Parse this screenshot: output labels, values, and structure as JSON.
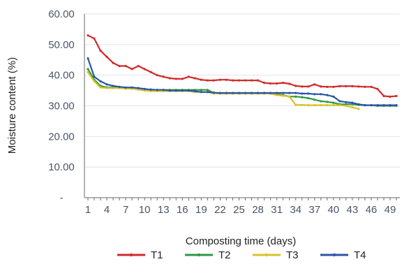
{
  "chart_data": {
    "type": "line",
    "xlabel": "Composting time (days)",
    "ylabel": "Moisture content  (%)",
    "ylim": [
      0,
      60
    ],
    "y_ticks": [
      {
        "value": 0,
        "label": "-"
      },
      {
        "value": 10,
        "label": "10.00"
      },
      {
        "value": 20,
        "label": "20.00"
      },
      {
        "value": 30,
        "label": "30.00"
      },
      {
        "value": 40,
        "label": "40.00"
      },
      {
        "value": 50,
        "label": "50.00"
      },
      {
        "value": 60,
        "label": "60.00"
      }
    ],
    "x_ticks": [
      1,
      4,
      7,
      10,
      13,
      16,
      19,
      22,
      25,
      28,
      31,
      34,
      37,
      40,
      43,
      46,
      49
    ],
    "xlim": [
      1,
      50
    ],
    "grid": true,
    "legend_position": "bottom",
    "series": [
      {
        "name": "T1",
        "color": "#d12b2b",
        "x": [
          1,
          2,
          3,
          4,
          5,
          6,
          7,
          8,
          9,
          10,
          11,
          12,
          13,
          14,
          15,
          16,
          17,
          18,
          19,
          20,
          21,
          22,
          23,
          24,
          25,
          26,
          27,
          28,
          29,
          30,
          31,
          32,
          33,
          34,
          35,
          36,
          37,
          38,
          39,
          40,
          41,
          42,
          43,
          44,
          45,
          46,
          47,
          48,
          49,
          50
        ],
        "values": [
          53,
          52,
          48,
          46,
          44,
          43,
          43,
          42,
          43,
          42,
          41,
          40,
          39.5,
          39,
          38.8,
          38.8,
          39.5,
          39,
          38.5,
          38.3,
          38.3,
          38.5,
          38.5,
          38.3,
          38.3,
          38.3,
          38.3,
          38.3,
          37.5,
          37.3,
          37.3,
          37.5,
          37.2,
          36.5,
          36.3,
          36.3,
          37,
          36.3,
          36.2,
          36.2,
          36.4,
          36.4,
          36.4,
          36.3,
          36.2,
          36.2,
          35.5,
          33.2,
          33,
          33.2
        ]
      },
      {
        "name": "T2",
        "color": "#2f9a3f",
        "x": [
          1,
          2,
          3,
          4,
          5,
          6,
          7,
          8,
          9,
          10,
          11,
          12,
          13,
          14,
          15,
          16,
          17,
          18,
          19,
          20,
          21,
          22,
          23,
          24,
          25,
          26,
          27,
          28,
          29,
          30,
          31,
          32,
          33,
          34,
          35,
          36,
          37,
          38,
          39,
          40,
          41,
          42,
          43,
          44,
          45,
          46,
          47,
          48,
          49,
          50
        ],
        "values": [
          42,
          38.5,
          36.5,
          36,
          36,
          36,
          35.8,
          35.8,
          35.5,
          35.3,
          35.3,
          35.2,
          35.2,
          35.2,
          35.2,
          35.2,
          35.2,
          35.2,
          35.2,
          35.2,
          34.2,
          34.2,
          34.2,
          34.2,
          34.2,
          34.2,
          34.2,
          34.2,
          34.2,
          34,
          33.8,
          33.5,
          33,
          33,
          32.8,
          32.5,
          32,
          31.5,
          31.3,
          31,
          30.5,
          30.5,
          30.5,
          30.3,
          30.2,
          30.2,
          30,
          30,
          30,
          30
        ]
      },
      {
        "name": "T3",
        "color": "#d8c32a",
        "x": [
          1,
          2,
          3,
          4,
          5,
          6,
          7,
          8,
          9,
          10,
          11,
          12,
          13,
          14,
          15,
          16,
          17,
          18,
          19,
          20,
          21,
          22,
          23,
          24,
          25,
          26,
          27,
          28,
          29,
          30,
          31,
          32,
          33,
          34,
          35,
          36,
          37,
          38,
          39,
          40,
          41,
          42,
          43,
          44
        ],
        "values": [
          41,
          38,
          36,
          35.8,
          35.8,
          35.8,
          35.6,
          35.6,
          35.3,
          35,
          34.8,
          34.8,
          34.8,
          34.8,
          34.8,
          34.8,
          34.8,
          34.5,
          34.5,
          34.5,
          34,
          34,
          34,
          34,
          34,
          34,
          34,
          34,
          34,
          34,
          33.5,
          33.3,
          33,
          30.3,
          30.3,
          30.2,
          30.2,
          30.2,
          30.2,
          30.2,
          30.2,
          30,
          29.5,
          29
        ]
      },
      {
        "name": "T4",
        "color": "#2c55a8",
        "x": [
          1,
          2,
          3,
          4,
          5,
          6,
          7,
          8,
          9,
          10,
          11,
          12,
          13,
          14,
          15,
          16,
          17,
          18,
          19,
          20,
          21,
          22,
          23,
          24,
          25,
          26,
          27,
          28,
          29,
          30,
          31,
          32,
          33,
          34,
          35,
          36,
          37,
          38,
          39,
          40,
          41,
          42,
          43,
          44,
          45,
          46,
          47,
          48,
          49,
          50
        ],
        "values": [
          45.5,
          39.5,
          38,
          37,
          36.5,
          36.2,
          36,
          36,
          35.8,
          35.5,
          35.3,
          35.2,
          35.2,
          35,
          35,
          35,
          35,
          34.8,
          34.5,
          34.5,
          34.3,
          34.2,
          34.2,
          34.2,
          34.2,
          34.2,
          34.2,
          34.2,
          34.2,
          34.2,
          34.2,
          34.2,
          34.2,
          34.2,
          34,
          34,
          33.8,
          33.8,
          33.5,
          33,
          31.5,
          31.2,
          31,
          30.5,
          30.2,
          30.2,
          30.2,
          30.2,
          30.2,
          30.2
        ]
      }
    ]
  }
}
